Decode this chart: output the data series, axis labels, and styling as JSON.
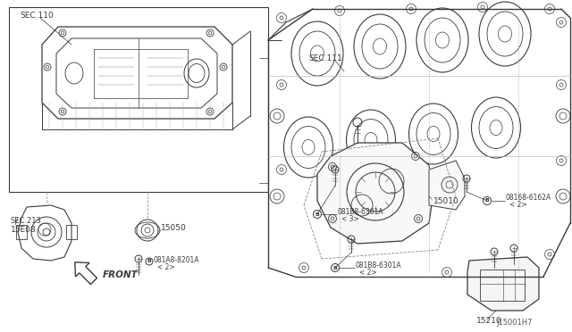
{
  "bg_color": "#ffffff",
  "line_color": "#3a3a3a",
  "fig_width": 6.4,
  "fig_height": 3.72,
  "dpi": 100,
  "diagram_id": "J15001H7",
  "labels": {
    "SEC110": "SEC.110",
    "SEC111": "SEC.111",
    "SEC213": "SEC.213",
    "part15050": "15050",
    "part15E08": "15E08",
    "part15010": "15010",
    "part15210": "15210",
    "bolt1_name": "081A8-8201A",
    "bolt1_qty": "< 2>",
    "bolt2_name": "081B8-6301A",
    "bolt2_qty": "< 3>",
    "bolt3_name": "081B8-6301A",
    "bolt3_qty": "< 2>",
    "bolt4_name": "08168-6162A",
    "bolt4_qty": "< 2>",
    "front": "FRONT"
  }
}
